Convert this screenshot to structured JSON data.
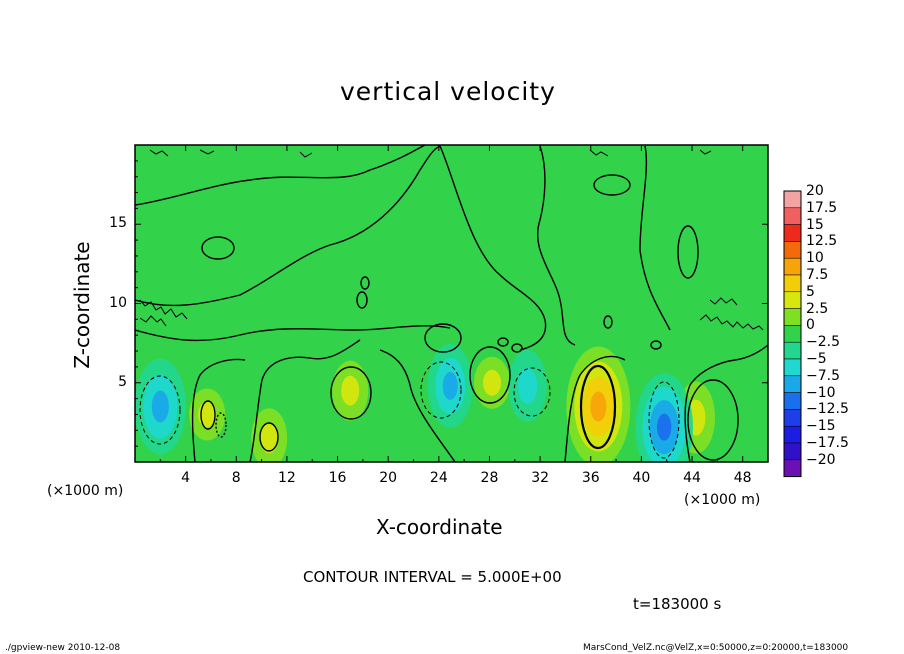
{
  "chart_data": {
    "type": "heatmap",
    "title": "vertical velocity",
    "xlabel": "X-coordinate",
    "ylabel": "Z-coordinate",
    "x_unit": "(×1000 m)",
    "y_unit": "(×1000 m)",
    "xlim": [
      0,
      50
    ],
    "ylim": [
      0,
      20
    ],
    "x_ticks": [
      4,
      8,
      12,
      16,
      20,
      24,
      28,
      32,
      36,
      40,
      44,
      48
    ],
    "y_ticks": [
      5,
      10,
      15
    ],
    "colorbar": {
      "levels": [
        20,
        17.5,
        15,
        12.5,
        10,
        7.5,
        5,
        2.5,
        0,
        -2.5,
        -5,
        -7.5,
        -10,
        -12.5,
        -15,
        -17.5,
        -20
      ],
      "labels": [
        "20",
        "17.5",
        "15",
        "12.5",
        "10",
        "7.5",
        "5",
        "2.5",
        "0",
        "−2.5",
        "−5",
        "−7.5",
        "−10",
        "−12.5",
        "−15",
        "−17.5",
        "−20"
      ],
      "colors": [
        "#f4a3a3",
        "#f06060",
        "#ee2a1a",
        "#f36a0a",
        "#f7a40a",
        "#f2ce0a",
        "#d6e60e",
        "#7fe023",
        "#32d24a",
        "#22d68d",
        "#20d8d0",
        "#1aa8e8",
        "#1a70ec",
        "#1e3fe8",
        "#1c1ce2",
        "#3010c8",
        "#6a10b4"
      ]
    },
    "features": [
      {
        "kind": "updraft",
        "x": 36.6,
        "z": 3.5,
        "peak": 10
      },
      {
        "kind": "updraft",
        "x": 44.3,
        "z": 2.8,
        "peak": 6
      },
      {
        "kind": "updraft",
        "x": 17.0,
        "z": 4.5,
        "peak": 5
      },
      {
        "kind": "updraft",
        "x": 10.6,
        "z": 1.5,
        "peak": 5
      },
      {
        "kind": "updraft",
        "x": 5.7,
        "z": 3.0,
        "peak": 4
      },
      {
        "kind": "updraft",
        "x": 28.2,
        "z": 5.0,
        "peak": 3
      },
      {
        "kind": "downdraft",
        "x": 2.0,
        "z": 3.5,
        "peak": -8
      },
      {
        "kind": "downdraft",
        "x": 24.9,
        "z": 4.8,
        "peak": -7
      },
      {
        "kind": "downdraft",
        "x": 31.0,
        "z": 4.8,
        "peak": -6
      },
      {
        "kind": "downdraft",
        "x": 41.8,
        "z": 2.2,
        "peak": -9
      }
    ]
  },
  "contour_note": "CONTOUR INTERVAL = 5.000E+00",
  "time_note": "t=183000 s",
  "footer_left": "./gpview-new   2010-12-08",
  "footer_right": "MarsCond_VelZ.nc@VelZ,x=0:50000,z=0:20000,t=183000"
}
